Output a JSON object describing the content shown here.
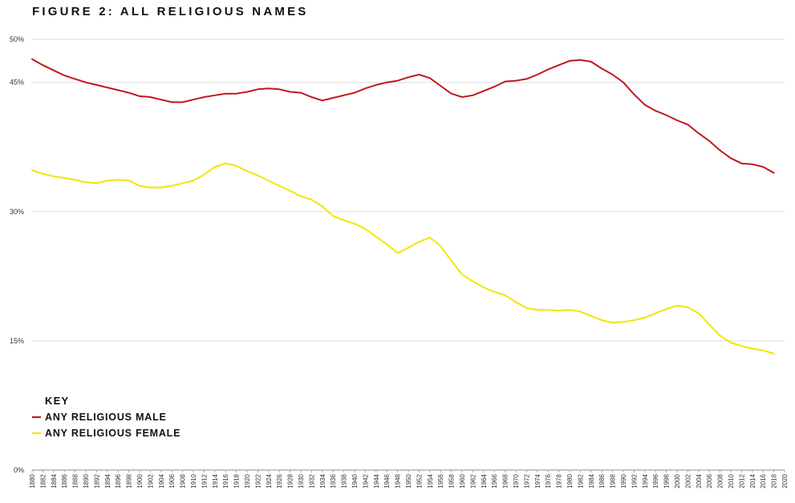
{
  "chart_data": {
    "type": "line",
    "title": "FIGURE 2: ALL RELIGIOUS NAMES",
    "xlabel": "",
    "ylabel": "",
    "xlim": [
      1880,
      2020
    ],
    "ylim": [
      0,
      50
    ],
    "y_tick_values": [
      0,
      15,
      30,
      45,
      50
    ],
    "y_tick_labels": [
      "0%",
      "15%",
      "30%",
      "45%",
      "50%"
    ],
    "x_tick_start": 1880,
    "x_tick_end": 2020,
    "x_tick_step": 2,
    "grid": true,
    "legend": {
      "title": "KEY",
      "position": "bottom-left"
    },
    "series": [
      {
        "name": "ANY RELIGIOUS MALE",
        "color": "#c0181f",
        "points": [
          [
            1880,
            47.7
          ],
          [
            1882,
            47.0
          ],
          [
            1884,
            46.4
          ],
          [
            1886,
            45.8
          ],
          [
            1888,
            45.4
          ],
          [
            1890,
            45.0
          ],
          [
            1892,
            44.7
          ],
          [
            1894,
            44.4
          ],
          [
            1896,
            44.1
          ],
          [
            1898,
            43.8
          ],
          [
            1900,
            43.4
          ],
          [
            1902,
            43.3
          ],
          [
            1904,
            43.0
          ],
          [
            1906,
            42.7
          ],
          [
            1908,
            42.7
          ],
          [
            1910,
            43.0
          ],
          [
            1912,
            43.3
          ],
          [
            1914,
            43.5
          ],
          [
            1916,
            43.7
          ],
          [
            1918,
            43.7
          ],
          [
            1920,
            43.9
          ],
          [
            1922,
            44.2
          ],
          [
            1924,
            44.3
          ],
          [
            1926,
            44.2
          ],
          [
            1928,
            43.9
          ],
          [
            1930,
            43.8
          ],
          [
            1932,
            43.3
          ],
          [
            1934,
            42.9
          ],
          [
            1936,
            43.2
          ],
          [
            1938,
            43.5
          ],
          [
            1940,
            43.8
          ],
          [
            1942,
            44.3
          ],
          [
            1944,
            44.7
          ],
          [
            1946,
            45.0
          ],
          [
            1948,
            45.2
          ],
          [
            1950,
            45.6
          ],
          [
            1952,
            45.9
          ],
          [
            1954,
            45.5
          ],
          [
            1956,
            44.6
          ],
          [
            1958,
            43.7
          ],
          [
            1960,
            43.3
          ],
          [
            1962,
            43.5
          ],
          [
            1964,
            44.0
          ],
          [
            1966,
            44.5
          ],
          [
            1968,
            45.1
          ],
          [
            1970,
            45.2
          ],
          [
            1972,
            45.4
          ],
          [
            1974,
            45.9
          ],
          [
            1976,
            46.5
          ],
          [
            1978,
            47.0
          ],
          [
            1980,
            47.5
          ],
          [
            1982,
            47.6
          ],
          [
            1984,
            47.4
          ],
          [
            1986,
            46.6
          ],
          [
            1988,
            45.9
          ],
          [
            1990,
            45.0
          ],
          [
            1992,
            43.6
          ],
          [
            1994,
            42.4
          ],
          [
            1996,
            41.7
          ],
          [
            1998,
            41.2
          ],
          [
            2000,
            40.6
          ],
          [
            2002,
            40.1
          ],
          [
            2004,
            39.1
          ],
          [
            2006,
            38.2
          ],
          [
            2008,
            37.1
          ],
          [
            2010,
            36.2
          ],
          [
            2012,
            35.6
          ],
          [
            2014,
            35.5
          ],
          [
            2016,
            35.2
          ],
          [
            2018,
            34.5
          ]
        ]
      },
      {
        "name": "ANY RELIGIOUS FEMALE",
        "color": "#f2e600",
        "points": [
          [
            1880,
            34.8
          ],
          [
            1882,
            34.4
          ],
          [
            1884,
            34.1
          ],
          [
            1886,
            33.9
          ],
          [
            1888,
            33.7
          ],
          [
            1890,
            33.4
          ],
          [
            1892,
            33.3
          ],
          [
            1894,
            33.6
          ],
          [
            1896,
            33.7
          ],
          [
            1898,
            33.6
          ],
          [
            1900,
            33.0
          ],
          [
            1902,
            32.8
          ],
          [
            1904,
            32.8
          ],
          [
            1906,
            33.0
          ],
          [
            1908,
            33.3
          ],
          [
            1910,
            33.6
          ],
          [
            1912,
            34.3
          ],
          [
            1914,
            35.2
          ],
          [
            1916,
            35.6
          ],
          [
            1918,
            35.3
          ],
          [
            1920,
            34.7
          ],
          [
            1922,
            34.2
          ],
          [
            1924,
            33.6
          ],
          [
            1926,
            33.0
          ],
          [
            1928,
            32.4
          ],
          [
            1930,
            31.8
          ],
          [
            1932,
            31.4
          ],
          [
            1934,
            30.6
          ],
          [
            1936,
            29.5
          ],
          [
            1938,
            29.0
          ],
          [
            1940,
            28.6
          ],
          [
            1942,
            28.0
          ],
          [
            1944,
            27.1
          ],
          [
            1946,
            26.2
          ],
          [
            1948,
            25.2
          ],
          [
            1950,
            25.8
          ],
          [
            1952,
            26.5
          ],
          [
            1954,
            27.0
          ],
          [
            1956,
            26.0
          ],
          [
            1958,
            24.3
          ],
          [
            1960,
            22.7
          ],
          [
            1962,
            21.9
          ],
          [
            1964,
            21.2
          ],
          [
            1966,
            20.7
          ],
          [
            1968,
            20.3
          ],
          [
            1970,
            19.5
          ],
          [
            1972,
            18.8
          ],
          [
            1974,
            18.6
          ],
          [
            1976,
            18.6
          ],
          [
            1978,
            18.5
          ],
          [
            1980,
            18.6
          ],
          [
            1982,
            18.4
          ],
          [
            1984,
            17.9
          ],
          [
            1986,
            17.4
          ],
          [
            1988,
            17.1
          ],
          [
            1990,
            17.2
          ],
          [
            1992,
            17.4
          ],
          [
            1994,
            17.7
          ],
          [
            1996,
            18.2
          ],
          [
            1998,
            18.7
          ],
          [
            2000,
            19.1
          ],
          [
            2002,
            18.9
          ],
          [
            2004,
            18.2
          ],
          [
            2006,
            16.9
          ],
          [
            2008,
            15.6
          ],
          [
            2010,
            14.8
          ],
          [
            2012,
            14.4
          ],
          [
            2014,
            14.1
          ],
          [
            2016,
            13.9
          ],
          [
            2018,
            13.5
          ]
        ]
      }
    ]
  }
}
